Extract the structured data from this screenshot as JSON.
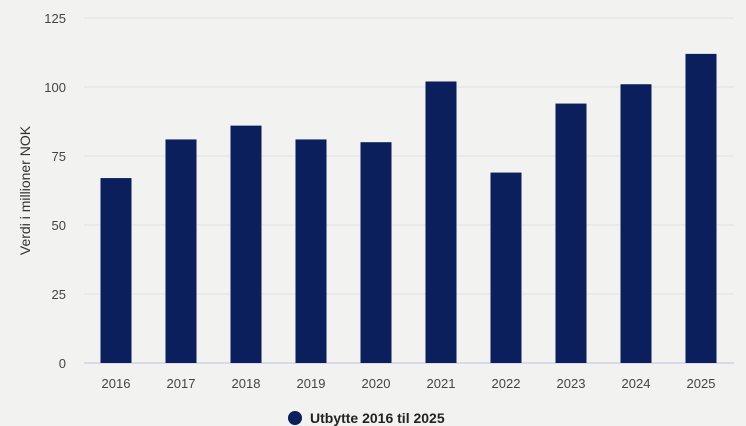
{
  "chart_data": {
    "type": "bar",
    "categories": [
      "2016",
      "2017",
      "2018",
      "2019",
      "2020",
      "2021",
      "2022",
      "2023",
      "2024",
      "2025"
    ],
    "series": [
      {
        "name": "Utbytte 2016 til 2025",
        "values": [
          67,
          81,
          86,
          81,
          80,
          102,
          69,
          94,
          101,
          112
        ]
      }
    ],
    "ylabel": "Verdi i millioner NOK",
    "xlabel": "",
    "ylim": [
      0,
      125
    ],
    "yticks": [
      0,
      25,
      50,
      75,
      100,
      125
    ],
    "grid": true,
    "legend_position": "bottom",
    "bar_color": "#0a1f5c",
    "grid_color": "#e0e0e0",
    "axis_color": "#c8cce8"
  }
}
